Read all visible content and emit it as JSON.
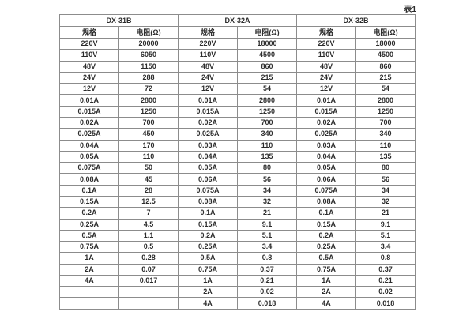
{
  "caption": "表1",
  "table": {
    "groups": [
      {
        "label": "DX-31B"
      },
      {
        "label": "DX-32A"
      },
      {
        "label": "DX-32B"
      }
    ],
    "col_headers": {
      "spec": "规格",
      "resistance": "电阻(Ω)"
    },
    "rows": [
      [
        "220V",
        "20000",
        "220V",
        "18000",
        "220V",
        "18000"
      ],
      [
        "110V",
        "6050",
        "110V",
        "4500",
        "110V",
        "4500"
      ],
      [
        "48V",
        "1150",
        "48V",
        "860",
        "48V",
        "860"
      ],
      [
        "24V",
        "288",
        "24V",
        "215",
        "24V",
        "215"
      ],
      [
        "12V",
        "72",
        "12V",
        "54",
        "12V",
        "54"
      ],
      [
        "0.01A",
        "2800",
        "0.01A",
        "2800",
        "0.01A",
        "2800"
      ],
      [
        "0.015A",
        "1250",
        "0.015A",
        "1250",
        "0.015A",
        "1250"
      ],
      [
        "0.02A",
        "700",
        "0.02A",
        "700",
        "0.02A",
        "700"
      ],
      [
        "0.025A",
        "450",
        "0.025A",
        "340",
        "0.025A",
        "340"
      ],
      [
        "0.04A",
        "170",
        "0.03A",
        "110",
        "0.03A",
        "110"
      ],
      [
        "0.05A",
        "110",
        "0.04A",
        "135",
        "0.04A",
        "135"
      ],
      [
        "0.075A",
        "50",
        "0.05A",
        "80",
        "0.05A",
        "80"
      ],
      [
        "0.08A",
        "45",
        "0.06A",
        "56",
        "0.06A",
        "56"
      ],
      [
        "0.1A",
        "28",
        "0.075A",
        "34",
        "0.075A",
        "34"
      ],
      [
        "0.15A",
        "12.5",
        "0.08A",
        "32",
        "0.08A",
        "32"
      ],
      [
        "0.2A",
        "7",
        "0.1A",
        "21",
        "0.1A",
        "21"
      ],
      [
        "0.25A",
        "4.5",
        "0.15A",
        "9.1",
        "0.15A",
        "9.1"
      ],
      [
        "0.5A",
        "1.1",
        "0.2A",
        "5.1",
        "0.2A",
        "5.1"
      ],
      [
        "0.75A",
        "0.5",
        "0.25A",
        "3.4",
        "0.25A",
        "3.4"
      ],
      [
        "1A",
        "0.28",
        "0.5A",
        "0.8",
        "0.5A",
        "0.8"
      ],
      [
        "2A",
        "0.07",
        "0.75A",
        "0.37",
        "0.75A",
        "0.37"
      ],
      [
        "4A",
        "0.017",
        "1A",
        "0.21",
        "1A",
        "0.21"
      ],
      [
        "",
        "",
        "2A",
        "0.02",
        "2A",
        "0.02"
      ],
      [
        "",
        "",
        "4A",
        "0.018",
        "4A",
        "0.018"
      ]
    ]
  }
}
